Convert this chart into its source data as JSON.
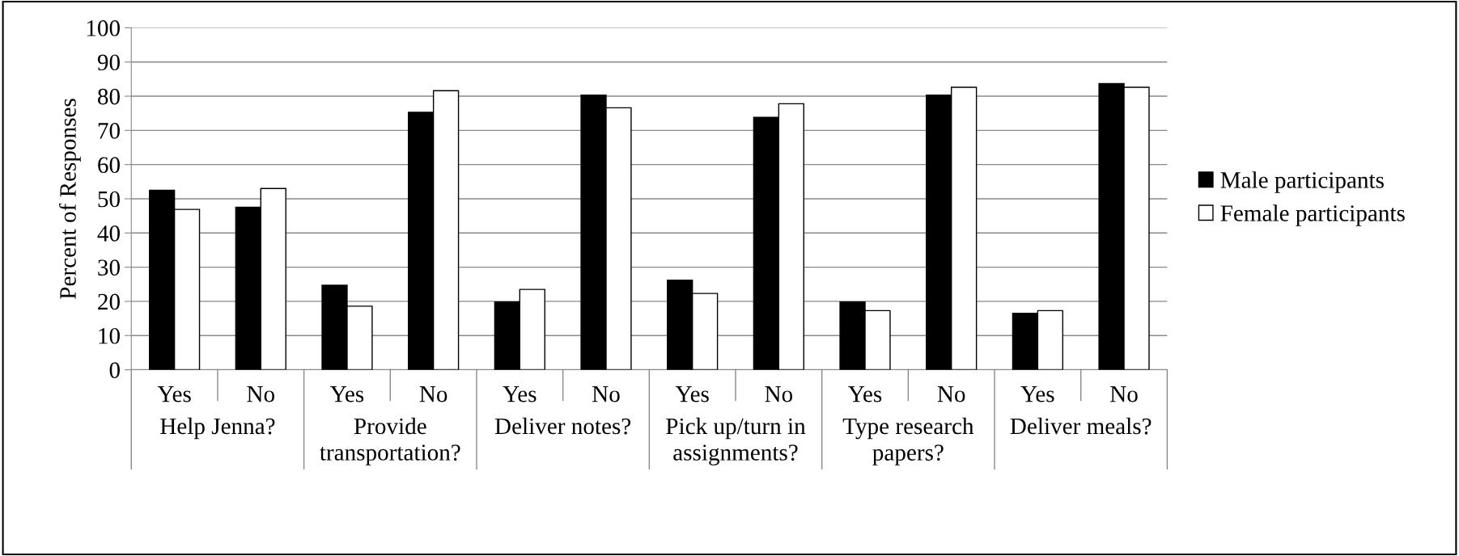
{
  "chart_data": {
    "type": "bar",
    "ylabel": "Percent of Responses",
    "categories": [
      "Yes",
      "No",
      "Yes",
      "No",
      "Yes",
      "No",
      "Yes",
      "No",
      "Yes",
      "No",
      "Yes",
      "No"
    ],
    "annotations": [
      "Help Jenna?",
      "Provide transportation?",
      "Deliver notes?",
      "Pick up/turn in assignments?",
      "Type research papers?",
      "Deliver meals?"
    ],
    "series": [
      {
        "name": "Male participants",
        "color": "#000000",
        "values": [
          52.5,
          47.5,
          24.7,
          75.3,
          19.8,
          80.3,
          26.2,
          73.8,
          19.8,
          80.3,
          16.5,
          83.7
        ]
      },
      {
        "name": "Female participants",
        "color": "#ffffff",
        "values": [
          46.9,
          53.0,
          18.6,
          81.6,
          23.5,
          76.6,
          22.3,
          77.8,
          17.3,
          82.6,
          17.3,
          82.6
        ]
      }
    ],
    "ylim": [
      0,
      100
    ],
    "yticks": [
      0,
      10,
      20,
      30,
      40,
      50,
      60,
      70,
      80,
      90,
      100
    ],
    "grid": "y",
    "legend": "right"
  }
}
